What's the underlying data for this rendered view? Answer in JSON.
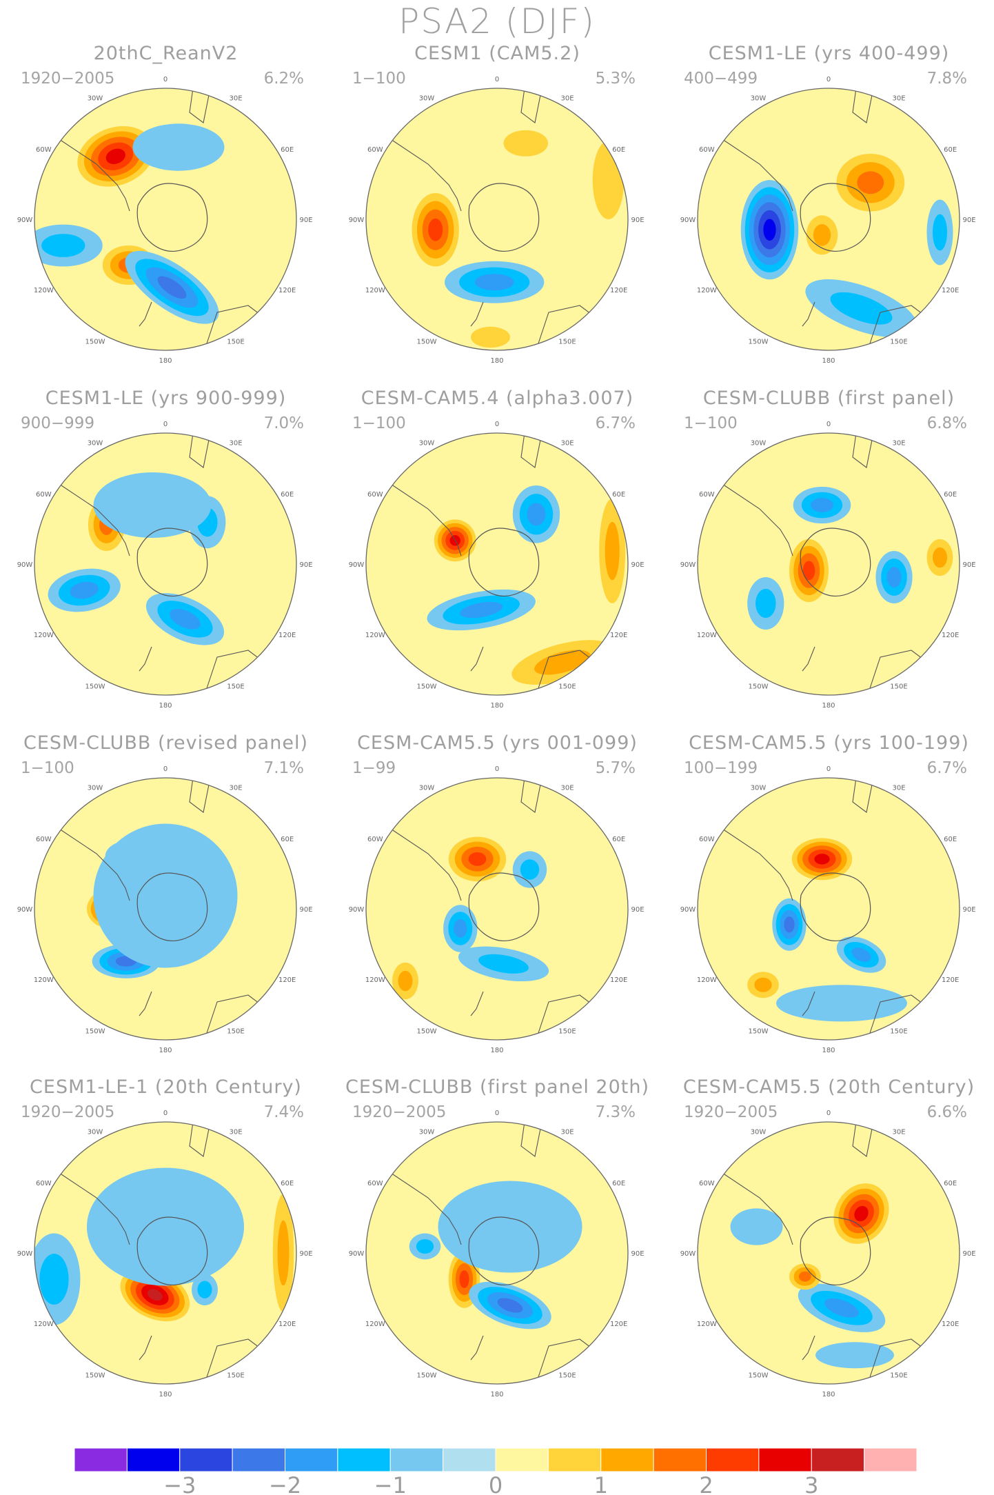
{
  "title": "PSA2 (DJF)",
  "chart_data": {
    "type": "heatmap",
    "title": "PSA2 (DJF)",
    "projection": "south polar stereographic",
    "colorbar": {
      "tick_labels": [
        "−3",
        "−2",
        "−1",
        "0",
        "1",
        "2",
        "3"
      ],
      "colors": [
        "#8a2be2",
        "#0000ee",
        "#2a45e0",
        "#3c78e8",
        "#2f9cf5",
        "#00bfff",
        "#76c8f0",
        "#b0dff0",
        "#fff6a0",
        "#ffd43a",
        "#ffa800",
        "#ff7000",
        "#ff3c00",
        "#e80000",
        "#c82020",
        "#ffb0b0"
      ]
    },
    "longitude_labels": [
      "0",
      "30E",
      "60E",
      "90E",
      "120E",
      "150E",
      "180",
      "150W",
      "120W",
      "90W",
      "60W",
      "30W"
    ],
    "panels": [
      {
        "title": "20thC_ReanV2",
        "years": "1920−2005",
        "variance": "6.2%",
        "blobs": [
          {
            "x": -0.38,
            "y": 0.48,
            "v": 2.6,
            "rx": 0.3,
            "ry": 0.22,
            "rot": -20
          },
          {
            "x": -0.28,
            "y": -0.35,
            "v": 1.5,
            "rx": 0.2,
            "ry": 0.15,
            "rot": 0
          },
          {
            "x": 0.05,
            "y": -0.52,
            "v": -2.2,
            "rx": 0.42,
            "ry": 0.17,
            "rot": 35
          },
          {
            "x": -0.78,
            "y": -0.2,
            "v": -1.0,
            "rx": 0.3,
            "ry": 0.16,
            "rot": 0
          },
          {
            "x": 0.1,
            "y": 0.55,
            "v": -0.6,
            "rx": 0.35,
            "ry": 0.18,
            "rot": 0
          }
        ]
      },
      {
        "title": "CESM1 (CAM5.2)",
        "years": "1−100",
        "variance": "5.3%",
        "blobs": [
          {
            "x": -0.47,
            "y": -0.08,
            "v": 2.1,
            "rx": 0.18,
            "ry": 0.28,
            "rot": 0
          },
          {
            "x": -0.02,
            "y": -0.48,
            "v": -1.7,
            "rx": 0.38,
            "ry": 0.16,
            "rot": 0
          },
          {
            "x": 0.22,
            "y": 0.58,
            "v": 0.8,
            "rx": 0.17,
            "ry": 0.1,
            "rot": 0
          },
          {
            "x": 0.85,
            "y": 0.3,
            "v": 0.9,
            "rx": 0.12,
            "ry": 0.3,
            "rot": 0
          },
          {
            "x": -0.05,
            "y": -0.9,
            "v": 0.8,
            "rx": 0.15,
            "ry": 0.08,
            "rot": 0
          }
        ]
      },
      {
        "title": "CESM1-LE (yrs 400-499)",
        "years": "400−499",
        "variance": "7.8%",
        "blobs": [
          {
            "x": -0.45,
            "y": -0.08,
            "v": -3.0,
            "rx": 0.22,
            "ry": 0.38,
            "rot": 0
          },
          {
            "x": 0.32,
            "y": 0.28,
            "v": 1.7,
            "rx": 0.26,
            "ry": 0.22,
            "rot": 0
          },
          {
            "x": -0.05,
            "y": -0.12,
            "v": 1.0,
            "rx": 0.12,
            "ry": 0.15,
            "rot": 0
          },
          {
            "x": 0.25,
            "y": -0.68,
            "v": -1.0,
            "rx": 0.45,
            "ry": 0.17,
            "rot": 20
          },
          {
            "x": 0.85,
            "y": -0.1,
            "v": -1.0,
            "rx": 0.1,
            "ry": 0.25,
            "rot": 0
          }
        ]
      },
      {
        "title": "CESM1-LE (yrs 900-999)",
        "years": "900−999",
        "variance": "7.0%",
        "blobs": [
          {
            "x": -0.45,
            "y": 0.3,
            "v": 1.6,
            "rx": 0.14,
            "ry": 0.2,
            "rot": 0
          },
          {
            "x": -0.62,
            "y": -0.2,
            "v": -1.6,
            "rx": 0.28,
            "ry": 0.16,
            "rot": -10
          },
          {
            "x": 0.15,
            "y": -0.42,
            "v": -1.8,
            "rx": 0.32,
            "ry": 0.16,
            "rot": 25
          },
          {
            "x": 0.32,
            "y": 0.32,
            "v": -1.0,
            "rx": 0.14,
            "ry": 0.2,
            "rot": 0
          },
          {
            "x": -0.1,
            "y": 0.45,
            "v": -0.5,
            "rx": 0.45,
            "ry": 0.25,
            "rot": 0
          }
        ]
      },
      {
        "title": "CESM-CAM5.4 (alpha3.007)",
        "years": "1−100",
        "variance": "6.7%",
        "blobs": [
          {
            "x": -0.32,
            "y": 0.18,
            "v": 2.6,
            "rx": 0.16,
            "ry": 0.16,
            "rot": 0
          },
          {
            "x": 0.3,
            "y": 0.38,
            "v": -1.7,
            "rx": 0.18,
            "ry": 0.22,
            "rot": 0
          },
          {
            "x": -0.12,
            "y": -0.35,
            "v": -1.9,
            "rx": 0.42,
            "ry": 0.14,
            "rot": -10
          },
          {
            "x": 0.5,
            "y": -0.75,
            "v": 1.0,
            "rx": 0.4,
            "ry": 0.14,
            "rot": -15
          },
          {
            "x": 0.88,
            "y": 0.1,
            "v": 1.0,
            "rx": 0.1,
            "ry": 0.4,
            "rot": 0
          }
        ]
      },
      {
        "title": "CESM-CLUBB (first panel)",
        "years": "1−100",
        "variance": "6.8%",
        "blobs": [
          {
            "x": -0.15,
            "y": -0.05,
            "v": 2.4,
            "rx": 0.15,
            "ry": 0.24,
            "rot": 0
          },
          {
            "x": -0.05,
            "y": 0.45,
            "v": -1.9,
            "rx": 0.22,
            "ry": 0.14,
            "rot": 0
          },
          {
            "x": 0.5,
            "y": -0.1,
            "v": -1.7,
            "rx": 0.14,
            "ry": 0.2,
            "rot": 0
          },
          {
            "x": -0.48,
            "y": -0.3,
            "v": -1.0,
            "rx": 0.14,
            "ry": 0.2,
            "rot": 0
          },
          {
            "x": 0.85,
            "y": 0.05,
            "v": 1.0,
            "rx": 0.1,
            "ry": 0.14,
            "rot": 0
          }
        ]
      },
      {
        "title": "CESM-CLUBB (revised panel)",
        "years": "1−100",
        "variance": "7.1%",
        "blobs": [
          {
            "x": -0.42,
            "y": 0.0,
            "v": 2.7,
            "rx": 0.18,
            "ry": 0.15,
            "rot": 0
          },
          {
            "x": -0.3,
            "y": -0.4,
            "v": -2.2,
            "rx": 0.26,
            "ry": 0.13,
            "rot": 0
          },
          {
            "x": -0.28,
            "y": 0.4,
            "v": -1.6,
            "rx": 0.18,
            "ry": 0.12,
            "rot": 0
          },
          {
            "x": 0.0,
            "y": 0.1,
            "v": -0.6,
            "rx": 0.55,
            "ry": 0.55,
            "rot": 0
          }
        ]
      },
      {
        "title": "CESM-CAM5.5 (yrs 001-099)",
        "years": "1−99",
        "variance": "5.7%",
        "blobs": [
          {
            "x": -0.15,
            "y": 0.38,
            "v": 2.2,
            "rx": 0.22,
            "ry": 0.17,
            "rot": 0
          },
          {
            "x": -0.28,
            "y": -0.15,
            "v": -1.8,
            "rx": 0.13,
            "ry": 0.18,
            "rot": 0
          },
          {
            "x": 0.25,
            "y": 0.3,
            "v": -1.0,
            "rx": 0.13,
            "ry": 0.14,
            "rot": 0
          },
          {
            "x": 0.05,
            "y": -0.42,
            "v": -1.0,
            "rx": 0.35,
            "ry": 0.12,
            "rot": 10
          },
          {
            "x": -0.7,
            "y": -0.55,
            "v": 1.0,
            "rx": 0.1,
            "ry": 0.14,
            "rot": 0
          }
        ]
      },
      {
        "title": "CESM-CAM5.5 (yrs 100-199)",
        "years": "100−199",
        "variance": "6.7%",
        "blobs": [
          {
            "x": -0.05,
            "y": 0.38,
            "v": 2.6,
            "rx": 0.23,
            "ry": 0.16,
            "rot": 0
          },
          {
            "x": -0.3,
            "y": -0.12,
            "v": -2.2,
            "rx": 0.13,
            "ry": 0.2,
            "rot": 0
          },
          {
            "x": 0.25,
            "y": -0.35,
            "v": -1.8,
            "rx": 0.2,
            "ry": 0.12,
            "rot": 25
          },
          {
            "x": -0.5,
            "y": -0.58,
            "v": 1.0,
            "rx": 0.12,
            "ry": 0.1,
            "rot": 0
          },
          {
            "x": 0.1,
            "y": -0.72,
            "v": -0.7,
            "rx": 0.5,
            "ry": 0.14,
            "rot": 0
          }
        ]
      },
      {
        "title": "CESM1-LE-1 (20th Century)",
        "years": "1920−2005",
        "variance": "7.4%",
        "blobs": [
          {
            "x": -0.08,
            "y": -0.32,
            "v": 3.1,
            "rx": 0.28,
            "ry": 0.18,
            "rot": 25
          },
          {
            "x": 0.3,
            "y": -0.28,
            "v": -1.3,
            "rx": 0.1,
            "ry": 0.12,
            "rot": 0
          },
          {
            "x": -0.85,
            "y": -0.2,
            "v": -1.0,
            "rx": 0.2,
            "ry": 0.35,
            "rot": 0
          },
          {
            "x": 0.9,
            "y": 0.0,
            "v": 1.0,
            "rx": 0.08,
            "ry": 0.45,
            "rot": 0
          },
          {
            "x": 0.0,
            "y": 0.2,
            "v": -0.5,
            "rx": 0.6,
            "ry": 0.45,
            "rot": 0
          }
        ]
      },
      {
        "title": "CESM-CLUBB (first panel 20th)",
        "years": "1920−2005",
        "variance": "7.3%",
        "blobs": [
          {
            "x": -0.25,
            "y": -0.2,
            "v": 2.0,
            "rx": 0.12,
            "ry": 0.22,
            "rot": 0
          },
          {
            "x": 0.1,
            "y": -0.4,
            "v": -2.2,
            "rx": 0.33,
            "ry": 0.15,
            "rot": 20
          },
          {
            "x": -0.55,
            "y": 0.05,
            "v": -1.0,
            "rx": 0.12,
            "ry": 0.1,
            "rot": 0
          },
          {
            "x": 0.1,
            "y": 0.2,
            "v": -0.5,
            "rx": 0.55,
            "ry": 0.35,
            "rot": 0
          }
        ]
      },
      {
        "title": "CESM-CAM5.5 (20th Century)",
        "years": "1920−2005",
        "variance": "6.6%",
        "blobs": [
          {
            "x": 0.25,
            "y": 0.3,
            "v": 2.7,
            "rx": 0.2,
            "ry": 0.24,
            "rot": 30
          },
          {
            "x": 0.1,
            "y": -0.42,
            "v": -1.9,
            "rx": 0.35,
            "ry": 0.15,
            "rot": 20
          },
          {
            "x": -0.18,
            "y": -0.18,
            "v": 1.6,
            "rx": 0.12,
            "ry": 0.1,
            "rot": 0
          },
          {
            "x": -0.55,
            "y": 0.2,
            "v": -0.9,
            "rx": 0.2,
            "ry": 0.14,
            "rot": 0
          },
          {
            "x": 0.2,
            "y": -0.78,
            "v": -0.6,
            "rx": 0.3,
            "ry": 0.1,
            "rot": 0
          }
        ]
      }
    ]
  }
}
